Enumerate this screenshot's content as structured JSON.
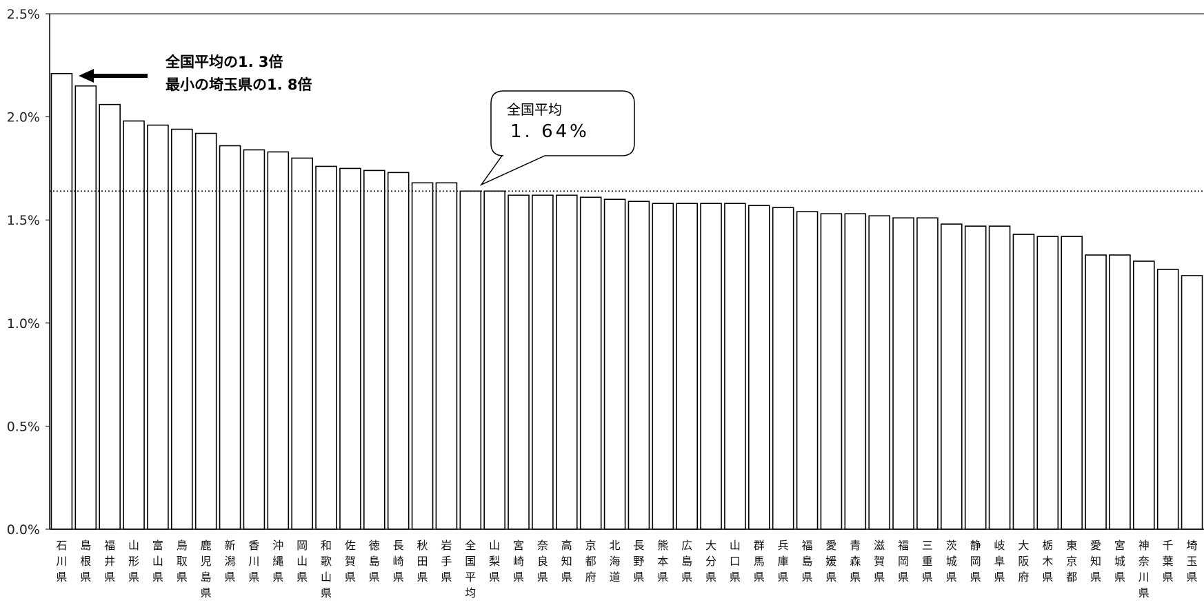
{
  "chart_data": {
    "type": "bar",
    "ylim": [
      0,
      2.5
    ],
    "yticks": [
      "2.5%",
      "2.0%",
      "1.5%",
      "1.0%",
      "0.5%",
      "0.0%"
    ],
    "ytick_values": [
      2.5,
      2.0,
      1.5,
      1.0,
      0.5,
      0.0
    ],
    "categories": [
      "石川県",
      "島根県",
      "福井県",
      "山形県",
      "富山県",
      "鳥取県",
      "鹿児島県",
      "新潟県",
      "香川県",
      "沖縄県",
      "岡山県",
      "和歌山県",
      "佐賀県",
      "徳島県",
      "長崎県",
      "秋田県",
      "岩手県",
      "全国平均",
      "山梨県",
      "宮崎県",
      "奈良県",
      "高知県",
      "京都府",
      "北海道",
      "長野県",
      "熊本県",
      "広島県",
      "大分県",
      "山口県",
      "群馬県",
      "兵庫県",
      "福島県",
      "愛媛県",
      "青森県",
      "滋賀県",
      "福岡県",
      "三重県",
      "茨城県",
      "静岡県",
      "岐阜県",
      "大阪府",
      "栃木県",
      "東京都",
      "愛知県",
      "宮城県",
      "神奈川県",
      "千葉県",
      "埼玉県"
    ],
    "values": [
      2.21,
      2.15,
      2.06,
      1.98,
      1.96,
      1.94,
      1.92,
      1.86,
      1.84,
      1.83,
      1.8,
      1.76,
      1.75,
      1.74,
      1.73,
      1.68,
      1.68,
      1.64,
      1.64,
      1.62,
      1.62,
      1.62,
      1.61,
      1.6,
      1.59,
      1.58,
      1.58,
      1.58,
      1.58,
      1.57,
      1.56,
      1.54,
      1.53,
      1.53,
      1.52,
      1.51,
      1.51,
      1.48,
      1.47,
      1.47,
      1.43,
      1.42,
      1.42,
      1.33,
      1.33,
      1.3,
      1.26,
      1.23
    ],
    "reference_line": {
      "value": 1.64,
      "style": "dotted"
    },
    "grid": false
  },
  "annotations": {
    "top_note_line1": "全国平均の1. 3倍",
    "top_note_line2": "最小の埼玉県の1. 8倍",
    "callout_line1": "全国平均",
    "callout_line2": "1. 64%"
  },
  "colors": {
    "bar_fill": "#ffffff",
    "bar_stroke": "#000000",
    "axis": "#000000"
  }
}
